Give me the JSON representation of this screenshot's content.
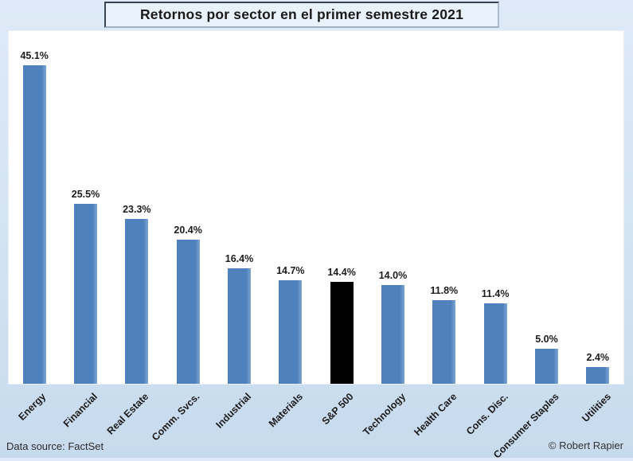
{
  "title": "Retornos por sector en el primer semestre 2021",
  "footer": {
    "data_source": "Data source: FactSet",
    "copyright": "© Robert Rapier"
  },
  "colors": {
    "bar_default": "#4F81BD",
    "bar_edge_highlight": "#7EA5D2",
    "bar_sp500": "#000000",
    "background_top": "#DEEAF7",
    "background_bottom": "#C7DBEE",
    "plot_background": "#FFFFFF",
    "title_box_fill": "#E9F1FA",
    "text": "#1A1A1A"
  },
  "chart_data": {
    "type": "bar",
    "title": "Retornos por sector en el primer semestre 2021",
    "categories": [
      "Energy",
      "Financial",
      "Real Estate",
      "Comm. Svcs.",
      "Industrial",
      "Materials",
      "S&P 500",
      "Technology",
      "Health Care",
      "Cons. Disc.",
      "Consumer Staples",
      "Utilities"
    ],
    "values": [
      45.1,
      25.5,
      23.3,
      20.4,
      16.4,
      14.7,
      14.4,
      14.0,
      11.8,
      11.4,
      5.0,
      2.4
    ],
    "value_labels": [
      "45.1%",
      "25.5%",
      "23.3%",
      "20.4%",
      "16.4%",
      "14.7%",
      "14.4%",
      "14.0%",
      "11.8%",
      "11.4%",
      "5.0%",
      "2.4%"
    ],
    "bar_colors": [
      "#4F81BD",
      "#4F81BD",
      "#4F81BD",
      "#4F81BD",
      "#4F81BD",
      "#4F81BD",
      "#000000",
      "#4F81BD",
      "#4F81BD",
      "#4F81BD",
      "#4F81BD",
      "#4F81BD"
    ],
    "default_bar_color": "#4F81BD",
    "highlight": {
      "category": "S&P 500",
      "color": "#000000"
    },
    "xlabel": "",
    "ylabel": "",
    "ylim": [
      0,
      50
    ],
    "grid": false,
    "data_labels": true,
    "legend": "none",
    "label_rotation_deg": 45
  }
}
